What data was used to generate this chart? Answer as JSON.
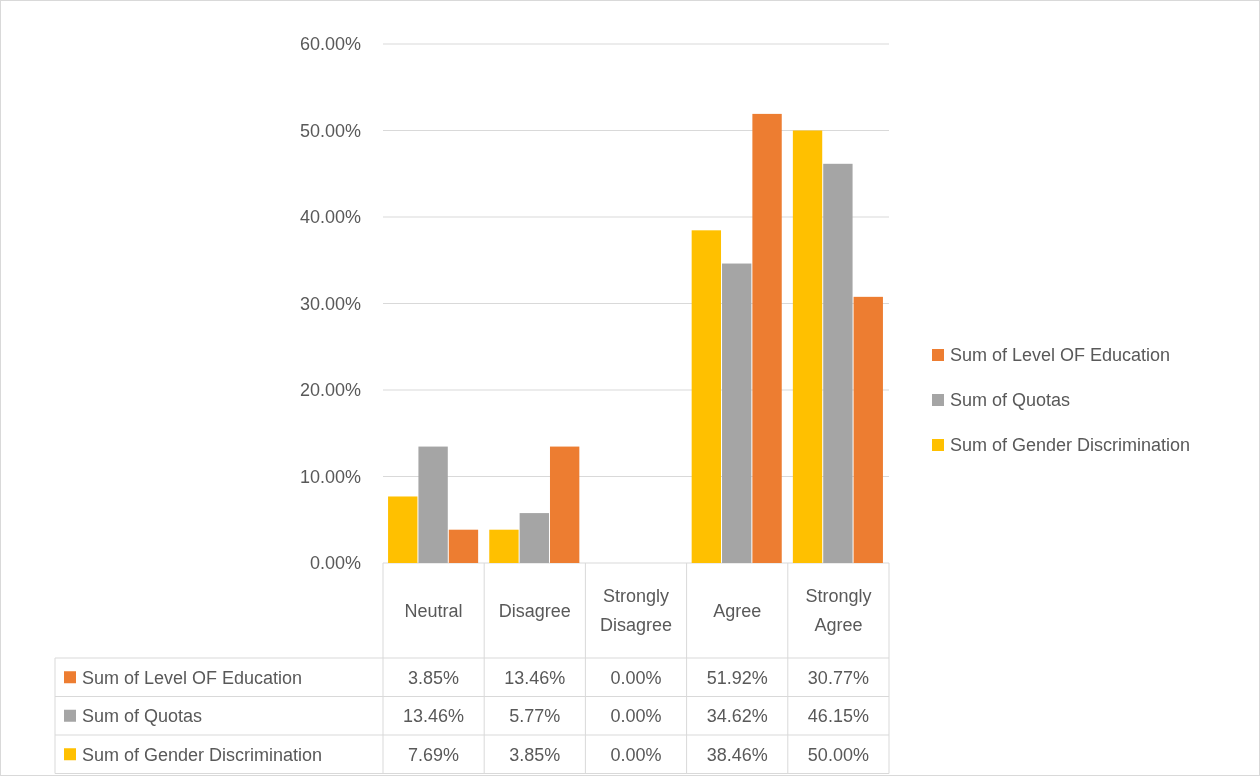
{
  "chart_data": {
    "type": "bar",
    "categories": [
      "Neutral",
      "Disagree",
      "Strongly Disagree",
      "Agree",
      "Strongly Agree"
    ],
    "series": [
      {
        "name": "Sum of Gender Discrimination",
        "color": "#ffc000",
        "values": [
          7.69,
          3.85,
          0,
          38.46,
          50.0
        ],
        "value_labels": [
          "7.69%",
          "3.85%",
          "0.00%",
          "38.46%",
          "50.00%"
        ]
      },
      {
        "name": "Sum of Quotas",
        "color": "#a5a5a5",
        "values": [
          13.46,
          5.77,
          0,
          34.62,
          46.15
        ],
        "value_labels": [
          "13.46%",
          "5.77%",
          "0.00%",
          "34.62%",
          "46.15%"
        ]
      },
      {
        "name": "Sum of Level OF Education",
        "color": "#ed7d31",
        "values": [
          3.85,
          13.46,
          0,
          51.92,
          30.77
        ],
        "value_labels": [
          "3.85%",
          "13.46%",
          "0.00%",
          "51.92%",
          "30.77%"
        ]
      }
    ],
    "ylim": [
      0,
      60
    ],
    "yticks": [
      {
        "value": 0,
        "label": "0.00%"
      },
      {
        "value": 10,
        "label": "10.00%"
      },
      {
        "value": 20,
        "label": "20.00%"
      },
      {
        "value": 30,
        "label": "30.00%"
      },
      {
        "value": 40,
        "label": "40.00%"
      },
      {
        "value": 50,
        "label": "50.00%"
      },
      {
        "value": 60,
        "label": "60.00%"
      }
    ],
    "grid": "y",
    "legend": "right"
  }
}
